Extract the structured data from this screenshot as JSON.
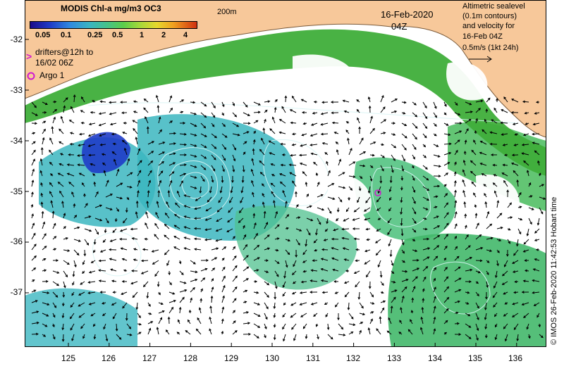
{
  "colorbar": {
    "title": "MODIS Chl-a mg/m3 OC3",
    "ticks": [
      "0.05",
      "0.1",
      "0.25",
      "0.5",
      "1",
      "2",
      "4"
    ]
  },
  "labels": {
    "contour_200m": "200m",
    "date": "16-Feb-2020",
    "time": "04Z",
    "legend_lines": [
      "Altimetric sealevel",
      "(0.1m contours)",
      "and velocity for",
      "16-Feb 04Z",
      "0.5m/s (1kt 24h)"
    ],
    "drifters_line1": "drifters@12h to",
    "drifters_line2": "16/02 06Z",
    "drifters_marker": ">",
    "argo": "Argo 1",
    "credit": "© IMOS 26-Feb-2020 11:42:53 Hobart time"
  },
  "axes": {
    "lat_ticks": [
      "-32",
      "-33",
      "-34",
      "-35",
      "-36",
      "-37"
    ],
    "lon_ticks": [
      "125",
      "126",
      "127",
      "128",
      "129",
      "130",
      "131",
      "132",
      "133",
      "134",
      "135",
      "136"
    ]
  },
  "colors": {
    "land": "#f7c89a",
    "coast_chl": "#3fae3a",
    "offshore_chl": "#3bb6c0",
    "low_chl": "#1f3cc8",
    "marker": "#d01ad0"
  }
}
